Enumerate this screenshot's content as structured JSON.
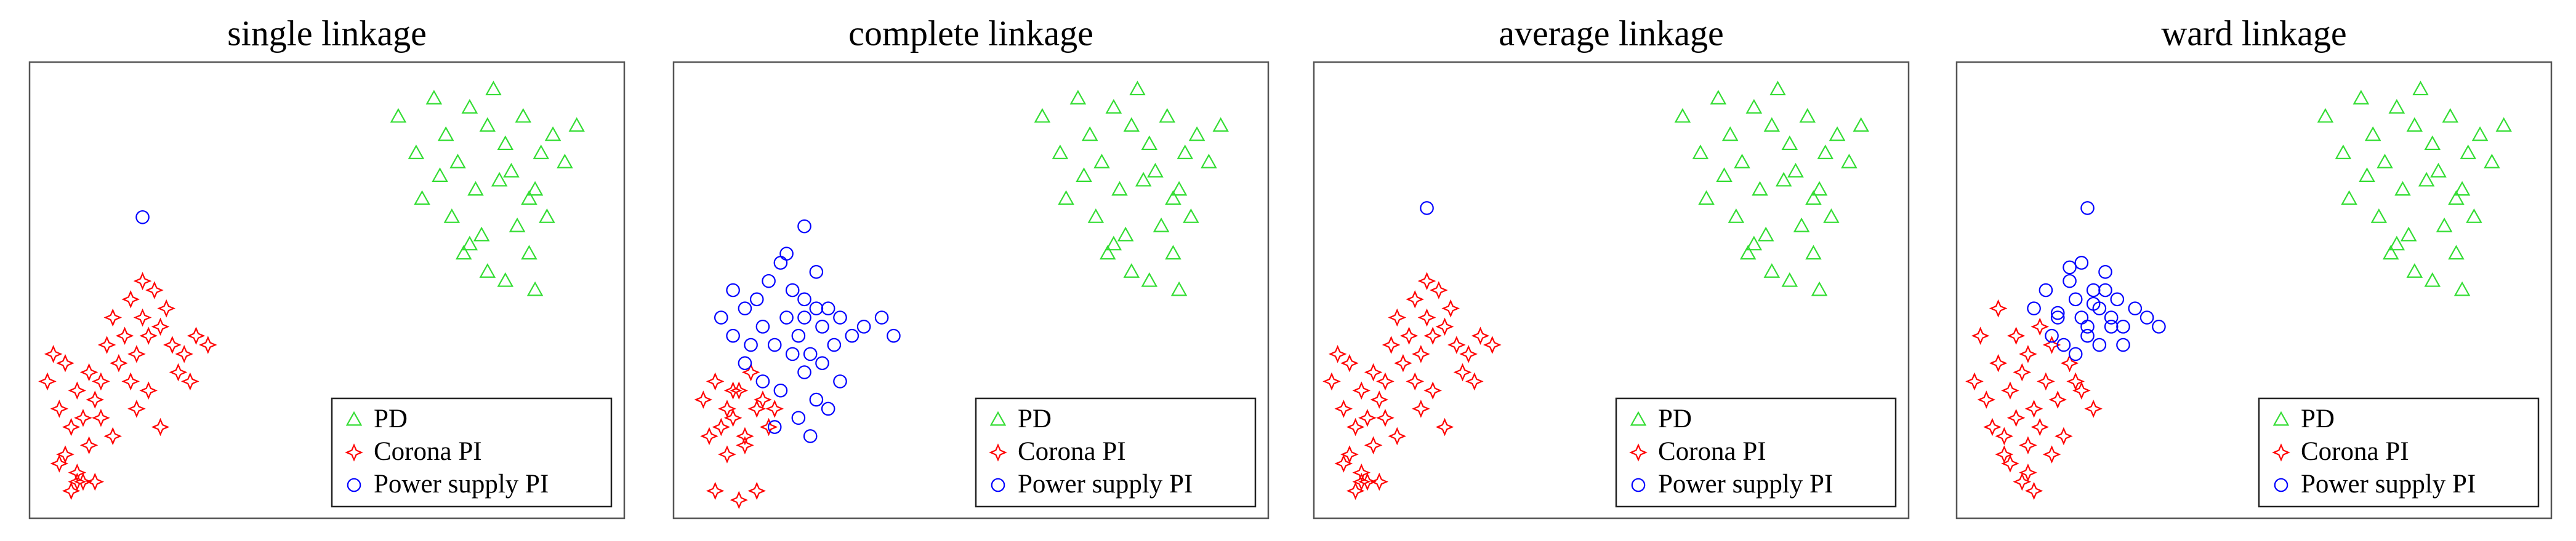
{
  "chart_data": [
    {
      "type": "scatter",
      "title": "single linkage",
      "xlim": [
        0,
        100
      ],
      "ylim": [
        0,
        100
      ],
      "legend": "lower right",
      "series": [
        {
          "name": "PD",
          "color": "#33dd33",
          "marker": "triangle",
          "x": [
            62,
            65,
            68,
            70,
            72,
            74,
            75,
            77,
            78,
            80,
            81,
            83,
            84,
            86,
            88,
            90,
            66,
            71,
            76,
            79,
            82,
            85,
            73,
            69,
            87,
            77,
            80,
            74,
            92,
            84,
            85
          ],
          "values": [
            88,
            80,
            92,
            84,
            78,
            90,
            72,
            86,
            94,
            82,
            76,
            88,
            70,
            80,
            84,
            78,
            70,
            66,
            62,
            74,
            64,
            72,
            58,
            75,
            66,
            54,
            52,
            60,
            86,
            58,
            50
          ]
        },
        {
          "name": "Corona PI",
          "color": "#ff0000",
          "marker": "star",
          "x": [
            3,
            5,
            6,
            8,
            9,
            10,
            7,
            4,
            11,
            12,
            6,
            8,
            10,
            13,
            14,
            16,
            17,
            18,
            19,
            20,
            21,
            22,
            15,
            17,
            19,
            23,
            24,
            26,
            28,
            30,
            5,
            7,
            9,
            12,
            14,
            18,
            20,
            22,
            25,
            27,
            8,
            11
          ],
          "values": [
            30,
            24,
            34,
            28,
            22,
            32,
            20,
            36,
            26,
            30,
            14,
            10,
            16,
            38,
            44,
            40,
            48,
            36,
            44,
            40,
            50,
            42,
            34,
            30,
            52,
            46,
            38,
            36,
            40,
            38,
            12,
            6,
            8,
            22,
            18,
            24,
            28,
            20,
            32,
            30,
            8,
            8
          ]
        },
        {
          "name": "Power supply PI",
          "color": "#0000ff",
          "marker": "circle",
          "x": [
            19
          ],
          "values": [
            66
          ]
        }
      ]
    },
    {
      "type": "scatter",
      "title": "complete linkage",
      "xlim": [
        0,
        100
      ],
      "ylim": [
        0,
        100
      ],
      "legend": "lower right",
      "series": [
        {
          "name": "PD",
          "color": "#33dd33",
          "marker": "triangle",
          "x": [
            62,
            65,
            68,
            70,
            72,
            74,
            75,
            77,
            78,
            80,
            81,
            83,
            84,
            86,
            88,
            90,
            66,
            71,
            76,
            79,
            82,
            85,
            73,
            69,
            87,
            77,
            80,
            74,
            92,
            84,
            85
          ],
          "values": [
            88,
            80,
            92,
            84,
            78,
            90,
            72,
            86,
            94,
            82,
            76,
            88,
            70,
            80,
            84,
            78,
            70,
            66,
            62,
            74,
            64,
            72,
            58,
            75,
            66,
            54,
            52,
            60,
            86,
            58,
            50
          ]
        },
        {
          "name": "Corona PI",
          "color": "#ff0000",
          "marker": "star",
          "x": [
            5,
            7,
            9,
            11,
            13,
            15,
            17,
            8,
            10,
            12,
            14,
            16,
            6,
            9,
            12,
            7,
            11,
            14,
            10
          ],
          "values": [
            26,
            30,
            24,
            28,
            32,
            26,
            24,
            20,
            22,
            18,
            24,
            20,
            18,
            14,
            16,
            6,
            4,
            6,
            28
          ]
        },
        {
          "name": "Power supply PI",
          "color": "#0000ff",
          "marker": "circle",
          "x": [
            8,
            10,
            12,
            14,
            15,
            16,
            17,
            18,
            19,
            20,
            21,
            22,
            23,
            24,
            25,
            26,
            27,
            28,
            30,
            32,
            35,
            37,
            12,
            15,
            18,
            20,
            22,
            24,
            26,
            28,
            19,
            21,
            23,
            17,
            25,
            13,
            10,
            22,
            24,
            22
          ],
          "values": [
            44,
            40,
            46,
            48,
            42,
            52,
            38,
            56,
            44,
            50,
            40,
            48,
            36,
            54,
            42,
            46,
            38,
            44,
            40,
            42,
            44,
            40,
            34,
            30,
            28,
            36,
            32,
            26,
            24,
            30,
            58,
            22,
            18,
            20,
            34,
            38,
            50,
            44,
            46,
            64
          ]
        }
      ]
    },
    {
      "type": "scatter",
      "title": "average linkage",
      "xlim": [
        0,
        100
      ],
      "ylim": [
        0,
        100
      ],
      "legend": "lower right",
      "series": [
        {
          "name": "PD",
          "color": "#33dd33",
          "marker": "triangle",
          "x": [
            62,
            65,
            68,
            70,
            72,
            74,
            75,
            77,
            78,
            80,
            81,
            83,
            84,
            86,
            88,
            90,
            66,
            71,
            76,
            79,
            82,
            85,
            73,
            69,
            87,
            77,
            80,
            74,
            92,
            84,
            85
          ],
          "values": [
            88,
            80,
            92,
            84,
            78,
            90,
            72,
            86,
            94,
            82,
            76,
            88,
            70,
            80,
            84,
            78,
            70,
            66,
            62,
            74,
            64,
            72,
            58,
            75,
            66,
            54,
            52,
            60,
            86,
            58,
            50
          ]
        },
        {
          "name": "Corona PI",
          "color": "#ff0000",
          "marker": "star",
          "x": [
            3,
            5,
            6,
            8,
            9,
            10,
            7,
            4,
            11,
            12,
            6,
            8,
            10,
            13,
            14,
            16,
            17,
            18,
            19,
            20,
            21,
            22,
            15,
            17,
            19,
            23,
            24,
            26,
            28,
            30,
            5,
            7,
            9,
            12,
            14,
            18,
            20,
            22,
            25,
            27,
            8,
            11
          ],
          "values": [
            30,
            24,
            34,
            28,
            22,
            32,
            20,
            36,
            26,
            30,
            14,
            10,
            16,
            38,
            44,
            40,
            48,
            36,
            44,
            40,
            50,
            42,
            34,
            30,
            52,
            46,
            38,
            36,
            40,
            38,
            12,
            6,
            8,
            22,
            18,
            24,
            28,
            20,
            32,
            30,
            8,
            8
          ]
        },
        {
          "name": "Power supply PI",
          "color": "#0000ff",
          "marker": "circle",
          "x": [
            19
          ],
          "values": [
            68
          ]
        }
      ]
    },
    {
      "type": "scatter",
      "title": "ward linkage",
      "xlim": [
        0,
        100
      ],
      "ylim": [
        0,
        100
      ],
      "legend": "lower right",
      "series": [
        {
          "name": "PD",
          "color": "#33dd33",
          "marker": "triangle",
          "x": [
            62,
            65,
            68,
            70,
            72,
            74,
            75,
            77,
            78,
            80,
            81,
            83,
            84,
            86,
            88,
            90,
            66,
            71,
            76,
            79,
            82,
            85,
            73,
            69,
            87,
            77,
            80,
            74,
            92,
            84,
            85
          ],
          "values": [
            88,
            80,
            92,
            84,
            78,
            90,
            72,
            86,
            94,
            82,
            76,
            88,
            70,
            80,
            84,
            78,
            70,
            66,
            62,
            74,
            64,
            72,
            58,
            75,
            66,
            54,
            52,
            60,
            86,
            58,
            50
          ]
        },
        {
          "name": "Corona PI",
          "color": "#ff0000",
          "marker": "star",
          "x": [
            3,
            5,
            7,
            9,
            11,
            13,
            15,
            17,
            19,
            21,
            23,
            6,
            8,
            10,
            12,
            14,
            16,
            18,
            20,
            9,
            11,
            13,
            7,
            10,
            12,
            14,
            16,
            8,
            12,
            4
          ],
          "values": [
            30,
            26,
            34,
            28,
            32,
            24,
            30,
            26,
            34,
            28,
            24,
            20,
            18,
            22,
            16,
            20,
            14,
            18,
            30,
            12,
            8,
            6,
            46,
            40,
            36,
            42,
            38,
            14,
            10,
            40
          ]
        },
        {
          "name": "Power supply PI",
          "color": "#0000ff",
          "marker": "circle",
          "x": [
            13,
            15,
            17,
            19,
            20,
            21,
            22,
            23,
            24,
            25,
            26,
            27,
            28,
            30,
            32,
            34,
            16,
            18,
            20,
            22,
            24,
            26,
            28,
            19,
            21,
            23,
            25,
            17,
            22
          ],
          "values": [
            46,
            50,
            44,
            52,
            48,
            56,
            42,
            50,
            46,
            54,
            44,
            48,
            42,
            46,
            44,
            42,
            40,
            38,
            36,
            40,
            38,
            42,
            38,
            55,
            44,
            47,
            50,
            45,
            68
          ]
        }
      ]
    }
  ]
}
